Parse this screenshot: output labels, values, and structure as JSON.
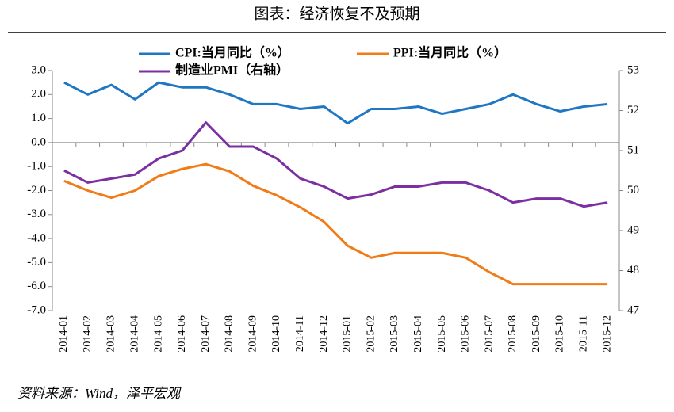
{
  "chart_data": {
    "type": "line",
    "title": "图表：经济恢复不及预期",
    "source": "资料来源：Wind，泽平宏观",
    "categories": [
      "2014-01",
      "2014-02",
      "2014-03",
      "2014-04",
      "2014-05",
      "2014-06",
      "2014-07",
      "2014-08",
      "2014-09",
      "2014-10",
      "2014-11",
      "2014-12",
      "2015-01",
      "2015-02",
      "2015-03",
      "2015-04",
      "2015-05",
      "2015-06",
      "2015-07",
      "2015-08",
      "2015-09",
      "2015-10",
      "2015-11",
      "2015-12"
    ],
    "series": [
      {
        "name": "CPI:当月同比（%）",
        "color": "#1f77c4",
        "values": [
          2.5,
          2.0,
          2.4,
          1.8,
          2.5,
          2.3,
          2.3,
          2.0,
          1.6,
          1.6,
          1.4,
          1.5,
          0.8,
          1.4,
          1.4,
          1.5,
          1.2,
          1.4,
          1.6,
          2.0,
          1.6,
          1.3,
          1.5,
          1.6
        ]
      },
      {
        "name": "PPI:当月同比（%）",
        "color": "#f07b17",
        "values": [
          -1.6,
          -2.0,
          -2.3,
          -2.0,
          -1.4,
          -1.1,
          -0.9,
          -1.2,
          -1.8,
          -2.2,
          -2.7,
          -3.3,
          -4.3,
          -4.8,
          -4.6,
          -4.6,
          -4.6,
          -4.8,
          -5.4,
          -5.9,
          -5.9,
          -5.9,
          -5.9,
          -5.9
        ]
      },
      {
        "name": "制造业PMI（右轴）",
        "color": "#7b2fa0",
        "axis": "y2",
        "values": [
          50.5,
          50.2,
          50.3,
          50.4,
          50.8,
          51.0,
          51.7,
          51.1,
          51.1,
          50.8,
          50.3,
          50.1,
          49.8,
          49.9,
          50.1,
          50.1,
          50.2,
          50.2,
          50.0,
          49.7,
          49.8,
          49.8,
          49.6,
          49.7
        ]
      }
    ],
    "ylim": [
      -7,
      3
    ],
    "yticks": [
      {
        "value": 3,
        "label": "3.0"
      },
      {
        "value": 2,
        "label": "2.0"
      },
      {
        "value": 1,
        "label": "1.0"
      },
      {
        "value": 0,
        "label": "0.0"
      },
      {
        "value": -1,
        "label": "-1.0"
      },
      {
        "value": -2,
        "label": "-2.0"
      },
      {
        "value": -3,
        "label": "-3.0"
      },
      {
        "value": -4,
        "label": "-4.0"
      },
      {
        "value": -5,
        "label": "-5.0"
      },
      {
        "value": -6,
        "label": "-6.0"
      },
      {
        "value": -7,
        "label": "-7.0"
      }
    ],
    "y2lim": [
      47,
      53
    ],
    "y2ticks": [
      53,
      52,
      51,
      50,
      49,
      48,
      47
    ],
    "grid": false
  }
}
